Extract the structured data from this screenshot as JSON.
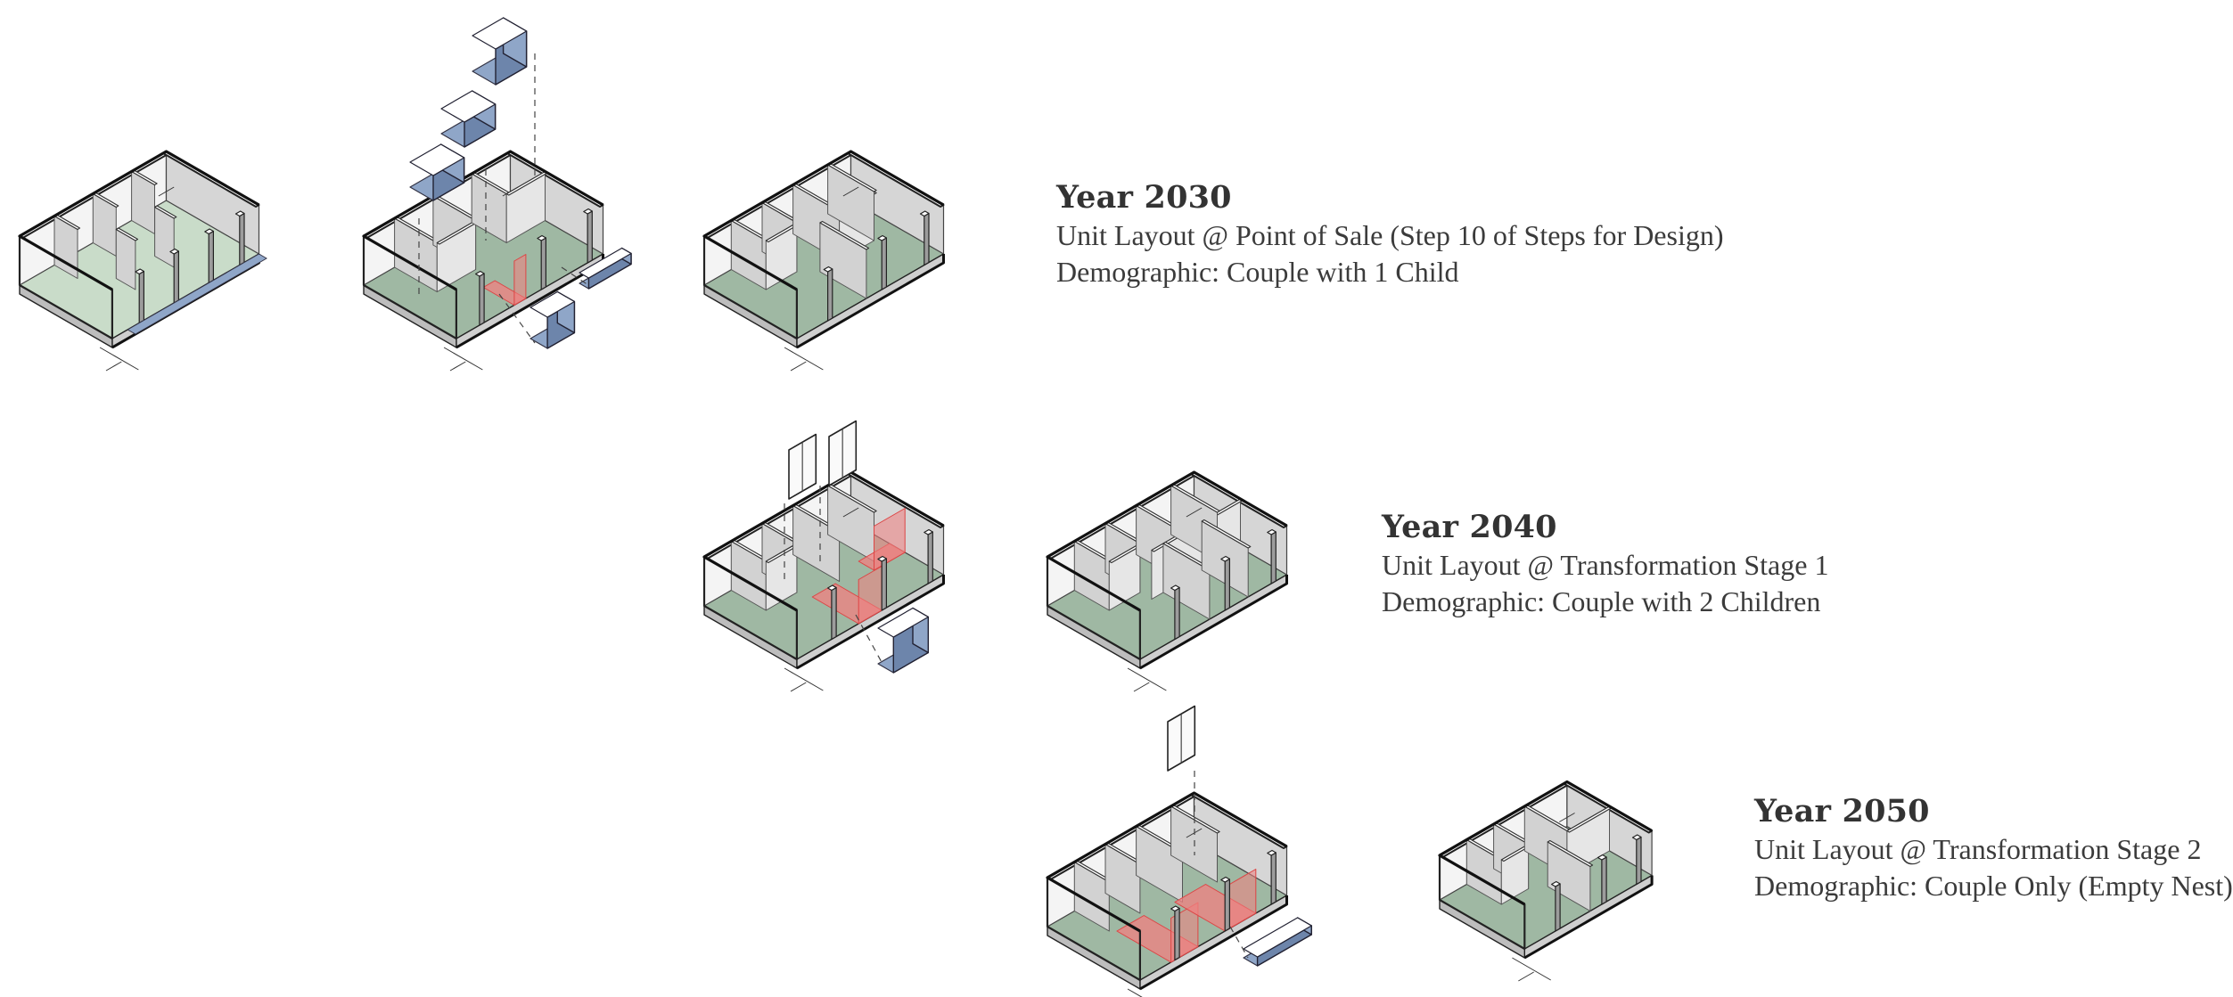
{
  "captions": {
    "y2030": {
      "title": "Year 2030",
      "layout": "Unit Layout @ Point of Sale (Step 10 of Steps for Design)",
      "demographic": "Demographic: Couple with 1 Child"
    },
    "y2040": {
      "title": "Year 2040",
      "layout": "Unit Layout @ Transformation Stage 1",
      "demographic": "Demographic: Couple with 2 Children"
    },
    "y2050": {
      "title": "Year 2050",
      "layout": "Unit Layout @ Transformation Stage 2",
      "demographic": "Demographic: Couple Only (Empty Nest)"
    }
  },
  "colors": {
    "floor": "#9fb8a3",
    "floor_light": "#c9dcc9",
    "wall_top": "#f4f4f4",
    "wall_side": "#d6d6d6",
    "wall_dark": "#9a9a9a",
    "outline": "#222222",
    "module_blue": "#8fa6c8",
    "module_blue_dark": "#6d85ab",
    "transform_red": "#f08080",
    "text": "#333333"
  }
}
